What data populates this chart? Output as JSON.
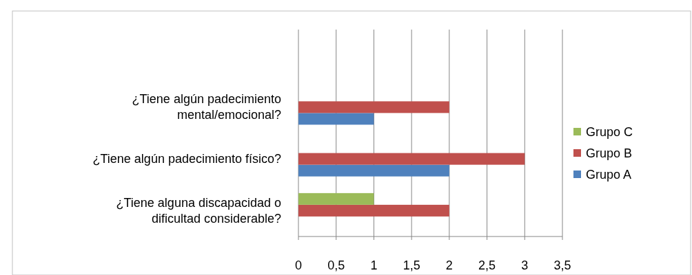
{
  "chart_data": {
    "type": "bar",
    "orientation": "horizontal",
    "categories": [
      null,
      "¿Tiene algún padecimiento mental/emocional?",
      "¿Tiene algún padecimiento físico?",
      "¿Tiene alguna discapacidad o dificultad considerable?"
    ],
    "series": [
      {
        "name": "Grupo A",
        "color": "#4f81bd",
        "values": [
          null,
          1,
          2,
          0
        ]
      },
      {
        "name": "Grupo B",
        "color": "#c0504d",
        "values": [
          null,
          2,
          3,
          2
        ]
      },
      {
        "name": "Grupo C",
        "color": "#9bbb59",
        "values": [
          null,
          0,
          0,
          1
        ]
      }
    ],
    "xlim": [
      0,
      3.5
    ],
    "xticks": [
      {
        "value": 0,
        "label": "0"
      },
      {
        "value": 0.5,
        "label": "0,5"
      },
      {
        "value": 1,
        "label": "1"
      },
      {
        "value": 1.5,
        "label": "1,5"
      },
      {
        "value": 2,
        "label": "2"
      },
      {
        "value": 2.5,
        "label": "2,5"
      },
      {
        "value": 3,
        "label": "3"
      },
      {
        "value": 3.5,
        "label": "3,5"
      }
    ],
    "grid": "x",
    "legend": "right"
  }
}
